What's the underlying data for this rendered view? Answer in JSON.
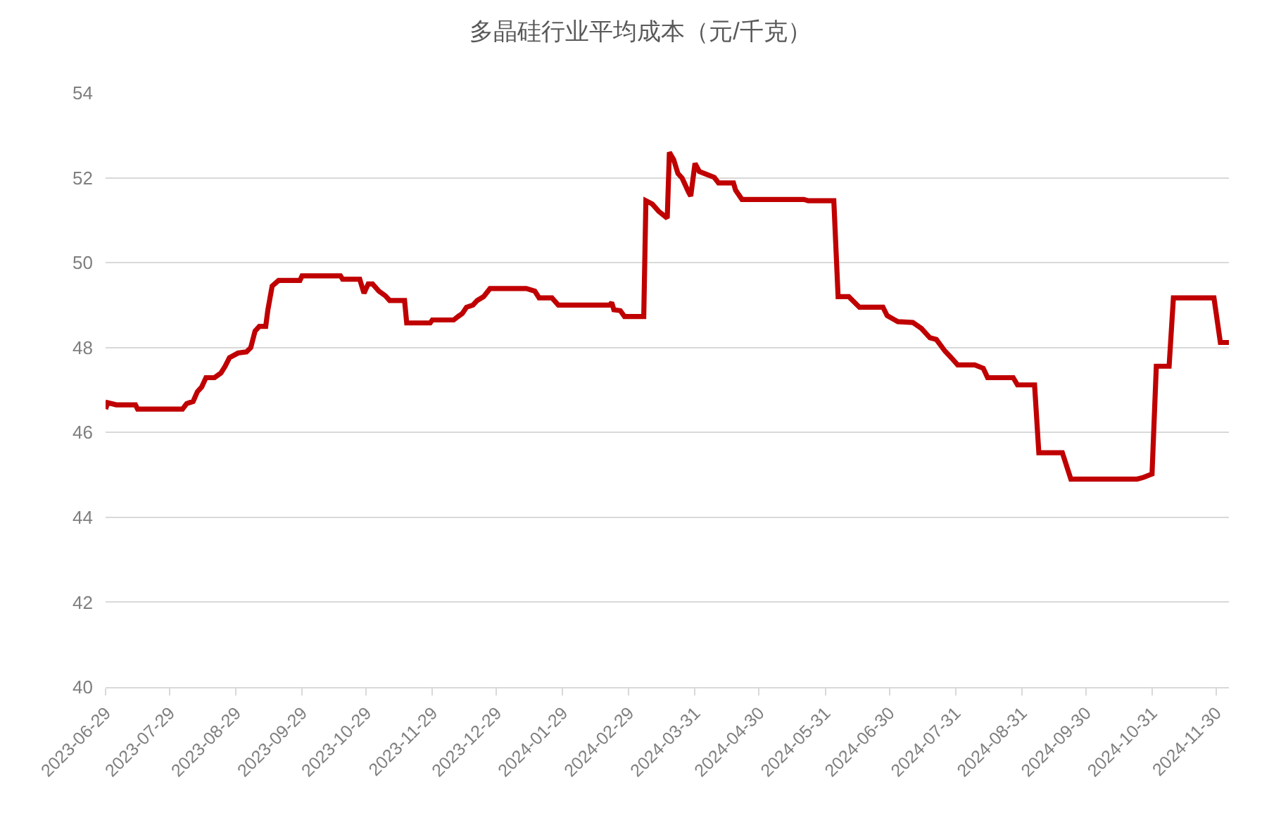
{
  "chart_data": {
    "type": "line",
    "title": "多晶硅行业平均成本（元/千克）",
    "x": [
      "2023-06-29",
      "2023-06-30",
      "2023-07-04",
      "2023-07-13",
      "2023-07-14",
      "2023-08-04",
      "2023-08-06",
      "2023-08-09",
      "2023-08-11",
      "2023-08-13",
      "2023-08-15",
      "2023-08-19",
      "2023-08-22",
      "2023-08-24",
      "2023-08-26",
      "2023-08-30",
      "2023-09-03",
      "2023-09-05",
      "2023-09-07",
      "2023-09-09",
      "2023-09-12",
      "2023-09-13",
      "2023-09-15",
      "2023-09-18",
      "2023-09-28",
      "2023-09-29",
      "2023-10-17",
      "2023-10-18",
      "2023-10-26",
      "2023-10-28",
      "2023-10-30",
      "2023-11-01",
      "2023-11-04",
      "2023-11-07",
      "2023-11-09",
      "2023-11-16",
      "2023-11-17",
      "2023-11-28",
      "2023-11-29",
      "2023-12-09",
      "2023-12-11",
      "2023-12-13",
      "2023-12-15",
      "2023-12-18",
      "2023-12-20",
      "2023-12-23",
      "2023-12-26",
      "2024-01-12",
      "2024-01-16",
      "2024-01-18",
      "2024-01-24",
      "2024-01-27",
      "2024-02-20",
      "2024-02-21",
      "2024-02-22",
      "2024-02-25",
      "2024-02-27",
      "2024-03-07",
      "2024-03-08",
      "2024-03-11",
      "2024-03-14",
      "2024-03-18",
      "2024-03-19",
      "2024-03-21",
      "2024-03-23",
      "2024-03-25",
      "2024-03-28",
      "2024-03-29",
      "2024-03-31",
      "2024-04-02",
      "2024-04-06",
      "2024-04-09",
      "2024-04-11",
      "2024-04-18",
      "2024-04-19",
      "2024-04-22",
      "2024-05-21",
      "2024-05-23",
      "2024-06-04",
      "2024-06-06",
      "2024-06-11",
      "2024-06-16",
      "2024-06-27",
      "2024-06-29",
      "2024-07-04",
      "2024-07-11",
      "2024-07-15",
      "2024-07-19",
      "2024-07-22",
      "2024-07-26",
      "2024-07-29",
      "2024-08-01",
      "2024-08-09",
      "2024-08-13",
      "2024-08-15",
      "2024-08-27",
      "2024-08-29",
      "2024-09-06",
      "2024-09-08",
      "2024-09-19",
      "2024-09-23",
      "2024-10-24",
      "2024-10-27",
      "2024-10-31",
      "2024-11-02",
      "2024-11-08",
      "2024-11-10",
      "2024-11-29",
      "2024-12-02",
      "2024-12-06"
    ],
    "series": [
      {
        "color": "#c00000",
        "values": [
          46.55,
          46.7,
          46.65,
          46.65,
          46.55,
          46.55,
          46.68,
          46.73,
          46.96,
          47.07,
          47.29,
          47.29,
          47.4,
          47.56,
          47.76,
          47.87,
          47.9,
          48.0,
          48.39,
          48.5,
          48.5,
          48.89,
          49.45,
          49.58,
          49.58,
          49.69,
          49.69,
          49.61,
          49.61,
          49.28,
          49.5,
          49.5,
          49.33,
          49.22,
          49.11,
          49.11,
          48.58,
          48.58,
          48.65,
          48.65,
          48.73,
          48.8,
          48.95,
          49.0,
          49.11,
          49.2,
          49.39,
          49.39,
          49.33,
          49.17,
          49.17,
          49.0,
          49.0,
          49.06,
          48.89,
          48.87,
          48.73,
          48.73,
          51.46,
          51.38,
          51.21,
          51.05,
          52.6,
          52.43,
          52.1,
          51.99,
          51.66,
          51.57,
          52.34,
          52.15,
          52.07,
          52.01,
          51.88,
          51.88,
          51.71,
          51.49,
          51.49,
          51.46,
          51.46,
          49.2,
          49.2,
          48.95,
          48.95,
          48.75,
          48.61,
          48.59,
          48.45,
          48.23,
          48.19,
          47.92,
          47.76,
          47.59,
          47.59,
          47.51,
          47.29,
          47.29,
          47.12,
          47.12,
          45.52,
          45.52,
          44.9,
          44.9,
          44.94,
          45.02,
          47.56,
          47.56,
          49.17,
          49.17,
          48.12,
          48.12
        ]
      }
    ],
    "xlim": [
      "2023-06-29",
      "2024-12-06"
    ],
    "xticks": [
      "2023-06-29",
      "2023-07-29",
      "2023-08-29",
      "2023-09-29",
      "2023-10-29",
      "2023-11-29",
      "2023-12-29",
      "2024-01-29",
      "2024-02-29",
      "2024-03-31",
      "2024-04-30",
      "2024-05-31",
      "2024-06-30",
      "2024-07-31",
      "2024-08-31",
      "2024-09-30",
      "2024-10-31",
      "2024-11-30"
    ],
    "ylim": [
      40,
      54
    ],
    "yticks": [
      40,
      42,
      44,
      46,
      48,
      50,
      52,
      54
    ],
    "grid": "y",
    "marker": "none",
    "line_style": "solid"
  }
}
